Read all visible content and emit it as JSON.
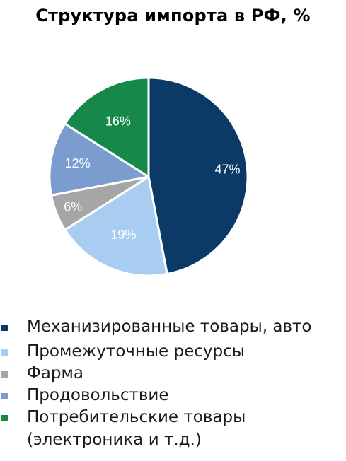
{
  "chart_data": {
    "type": "pie",
    "title": "Структура импорта в РФ, %",
    "categories": [
      "Механизированные товары, авто",
      "Промежуточные ресурсы",
      "Фарма",
      "Продовольствие",
      "Потребительские товары"
    ],
    "values": [
      47,
      19,
      6,
      12,
      16
    ],
    "value_labels": [
      "47%",
      "19%",
      "6%",
      "12%",
      "16%"
    ],
    "colors": [
      "#0b3a66",
      "#a9cdf0",
      "#a6a6a6",
      "#7b9ccf",
      "#16884a"
    ],
    "legend": {
      "placement": "bottom",
      "entries": [
        {
          "label": "Механизированные товары, авто",
          "color": "#0b3a66"
        },
        {
          "label": "Промежуточные ресурсы",
          "color": "#a9cdf0"
        },
        {
          "label": "Фарма",
          "color": "#a6a6a6"
        },
        {
          "label": "Продовольствие",
          "color": "#7b9ccf"
        },
        {
          "label": "Потребительские товары",
          "label_line2": "(электроника и т.д.)",
          "color": "#16884a"
        }
      ]
    }
  }
}
